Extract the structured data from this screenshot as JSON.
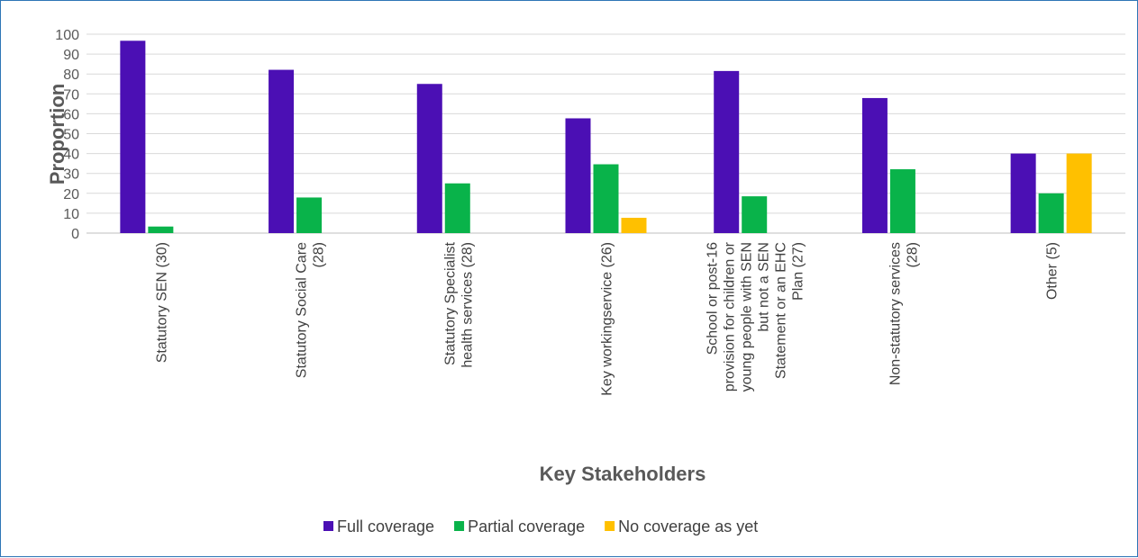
{
  "chart_data": {
    "type": "bar",
    "title": "",
    "xlabel": "Key Stakeholders",
    "ylabel": "Proportion",
    "ylim": [
      0,
      100
    ],
    "yticks": [
      0,
      10,
      20,
      30,
      40,
      50,
      60,
      70,
      80,
      90,
      100
    ],
    "grid": true,
    "legend_position": "bottom",
    "categories": [
      [
        "Statutory SEN (30)"
      ],
      [
        "Statutory Social Care",
        "(28)"
      ],
      [
        "Statutory Specialist",
        "health services (28)"
      ],
      [
        "Key workingservice (26)"
      ],
      [
        "School or post-16",
        "provision for children or",
        "young people with SEN",
        "but not a SEN",
        "Statement or an EHC",
        "Plan (27)"
      ],
      [
        "Non-statutory services",
        "(28)"
      ],
      [
        "Other (5)"
      ]
    ],
    "series": [
      {
        "name": "Full coverage",
        "color": "#4b0fb4",
        "values": [
          96.7,
          82.1,
          75.0,
          57.7,
          81.5,
          67.9,
          40.0
        ]
      },
      {
        "name": "Partial coverage",
        "color": "#09b34a",
        "values": [
          3.3,
          17.9,
          25.0,
          34.6,
          18.5,
          32.1,
          20.0
        ]
      },
      {
        "name": "No coverage as yet",
        "color": "#ffc000",
        "values": [
          0,
          0,
          0,
          7.7,
          0,
          0,
          40.0
        ]
      }
    ]
  }
}
